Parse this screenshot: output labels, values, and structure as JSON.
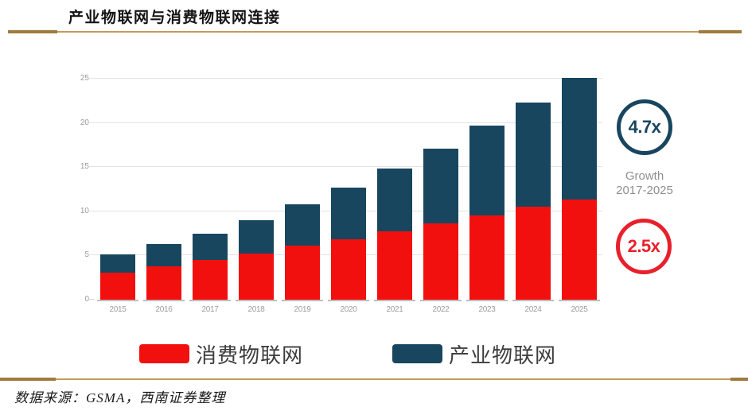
{
  "header": {
    "title": "产业物联网与消费物联网连接"
  },
  "footer": {
    "source": "数据来源：GSMA，西南证券整理"
  },
  "colors": {
    "consumer_red": "#f2100f",
    "industrial_navy": "#18465f",
    "gold_rule": "#c49a5e",
    "gold_rule_cap": "#a07b3e",
    "axis_text_gray": "#9c9c9c",
    "growth_text_gray": "#8f8f8f"
  },
  "chart_data": {
    "type": "bar",
    "stacked": true,
    "title": "产业物联网与消费物联网连接",
    "xlabel": "",
    "ylabel": "",
    "ylim": [
      0,
      25
    ],
    "yticks": [
      0,
      5,
      10,
      15,
      20,
      25
    ],
    "grid": true,
    "legend_position": "bottom",
    "categories": [
      "2015",
      "2016",
      "2017",
      "2018",
      "2019",
      "2020",
      "2021",
      "2022",
      "2023",
      "2024",
      "2025"
    ],
    "series": [
      {
        "name": "消费物联网",
        "color": "#f2100f",
        "values": [
          3.1,
          3.8,
          4.5,
          5.2,
          6.1,
          6.8,
          7.7,
          8.6,
          9.5,
          10.5,
          11.3
        ]
      },
      {
        "name": "产业物联网",
        "color": "#18465f",
        "values": [
          2.0,
          2.5,
          3.0,
          3.8,
          4.7,
          5.9,
          7.1,
          8.5,
          10.2,
          11.8,
          13.8
        ]
      }
    ],
    "annotations": {
      "industrial_growth": "4.7x",
      "growth_line1": "Growth",
      "growth_line2": "2017-2025",
      "consumer_growth": "2.5x"
    }
  }
}
